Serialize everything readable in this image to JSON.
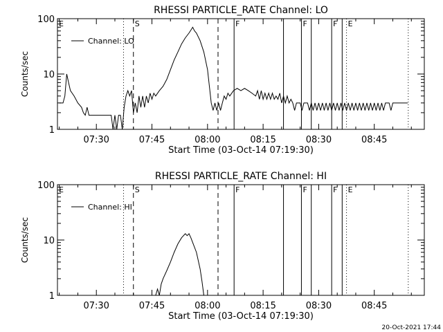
{
  "footer_timestamp": "20-Oct-2021 17:44",
  "chart_data": [
    {
      "type": "line",
      "title": "RHESSI PARTICLE_RATE Channel: LO",
      "xlabel": "Start Time (03-Oct-14 07:19:30)",
      "ylabel": "Counts/sec",
      "y_scale": "log",
      "ylim": [
        1,
        100
      ],
      "y_ticks": [
        {
          "value": 1,
          "label": "1"
        },
        {
          "value": 10,
          "label": "10"
        },
        {
          "value": 100,
          "label": "100"
        }
      ],
      "x_ticks": [
        {
          "value": "07:30",
          "label": "07:30"
        },
        {
          "value": "07:45",
          "label": "07:45"
        },
        {
          "value": "08:00",
          "label": "08:00"
        },
        {
          "value": "08:15",
          "label": "08:15"
        },
        {
          "value": "08:30",
          "label": "08:30"
        },
        {
          "value": "08:45",
          "label": "08:45"
        }
      ],
      "xlim": [
        "07:19:30",
        "08:58:30"
      ],
      "legend": {
        "position": "top-left",
        "entries": [
          "Channel: LO"
        ]
      },
      "grid": false,
      "annotations": [
        {
          "text": "E",
          "x": "07:19:30",
          "line": "none"
        },
        {
          "text": "S",
          "x": "07:40:00",
          "line": "dashed"
        },
        {
          "text": "",
          "x": "07:37:20",
          "line": "dotted"
        },
        {
          "text": "",
          "x": "08:02:50",
          "line": "dashed"
        },
        {
          "text": "F",
          "x": "08:07:10",
          "line": "solid"
        },
        {
          "text": "",
          "x": "08:20:30",
          "line": "solid"
        },
        {
          "text": "F",
          "x": "08:25:20",
          "line": "solid"
        },
        {
          "text": "",
          "x": "08:28:00",
          "line": "solid"
        },
        {
          "text": "F",
          "x": "08:33:30",
          "line": "solid"
        },
        {
          "text": "",
          "x": "08:36:20",
          "line": "solid"
        },
        {
          "text": "E",
          "x": "08:37:30",
          "line": "dotted"
        },
        {
          "text": "",
          "x": "08:54:10",
          "line": "dotted"
        }
      ],
      "series": [
        {
          "name": "Channel: LO",
          "points": [
            [
              "07:20:00",
              3.0
            ],
            [
              "07:21:00",
              3.0
            ],
            [
              "07:21:30",
              4.0
            ],
            [
              "07:22:00",
              10.0
            ],
            [
              "07:22:30",
              7.0
            ],
            [
              "07:23:00",
              5.0
            ],
            [
              "07:24:00",
              4.0
            ],
            [
              "07:25:00",
              3.0
            ],
            [
              "07:26:00",
              2.5
            ],
            [
              "07:26:30",
              2.0
            ],
            [
              "07:27:00",
              1.8
            ],
            [
              "07:27:30",
              2.5
            ],
            [
              "07:28:00",
              1.8
            ],
            [
              "07:34:00",
              1.8
            ],
            [
              "07:34:30",
              1.0
            ],
            [
              "07:35:00",
              1.8
            ],
            [
              "07:35:30",
              1.0
            ],
            [
              "07:36:00",
              1.8
            ],
            [
              "07:36:30",
              1.8
            ],
            [
              "07:37:00",
              1.0
            ],
            [
              "07:37:30",
              2.5
            ],
            [
              "07:38:00",
              4.0
            ],
            [
              "07:38:30",
              5.0
            ],
            [
              "07:39:00",
              4.0
            ],
            [
              "07:39:30",
              5.0
            ],
            [
              "07:40:00",
              2.0
            ],
            [
              "07:40:30",
              3.0
            ],
            [
              "07:41:00",
              2.0
            ],
            [
              "07:41:30",
              4.0
            ],
            [
              "07:42:00",
              2.5
            ],
            [
              "07:42:30",
              4.0
            ],
            [
              "07:43:00",
              2.5
            ],
            [
              "07:43:30",
              4.0
            ],
            [
              "07:44:00",
              3.0
            ],
            [
              "07:44:30",
              4.5
            ],
            [
              "07:45:00",
              3.5
            ],
            [
              "07:45:30",
              4.5
            ],
            [
              "07:46:00",
              4.0
            ],
            [
              "07:47:00",
              5.0
            ],
            [
              "07:48:00",
              6.0
            ],
            [
              "07:49:00",
              8.0
            ],
            [
              "07:50:00",
              12.0
            ],
            [
              "07:51:00",
              18.0
            ],
            [
              "07:52:00",
              25.0
            ],
            [
              "07:53:00",
              35.0
            ],
            [
              "07:54:00",
              45.0
            ],
            [
              "07:55:00",
              55.0
            ],
            [
              "07:55:30",
              62.0
            ],
            [
              "07:56:00",
              70.0
            ],
            [
              "07:56:30",
              60.0
            ],
            [
              "07:57:00",
              55.0
            ],
            [
              "07:58:00",
              40.0
            ],
            [
              "07:59:00",
              25.0
            ],
            [
              "08:00:00",
              12.0
            ],
            [
              "08:00:30",
              6.0
            ],
            [
              "08:01:00",
              3.0
            ],
            [
              "08:01:30",
              2.2
            ],
            [
              "08:02:00",
              3.0
            ],
            [
              "08:02:30",
              2.2
            ],
            [
              "08:03:00",
              3.0
            ],
            [
              "08:03:30",
              2.2
            ],
            [
              "08:04:00",
              3.0
            ],
            [
              "08:04:30",
              4.0
            ],
            [
              "08:05:00",
              3.5
            ],
            [
              "08:05:30",
              4.5
            ],
            [
              "08:06:00",
              4.0
            ],
            [
              "08:07:00",
              5.0
            ],
            [
              "08:08:00",
              5.5
            ],
            [
              "08:09:00",
              5.0
            ],
            [
              "08:10:00",
              5.5
            ],
            [
              "08:11:00",
              5.0
            ],
            [
              "08:12:00",
              4.5
            ],
            [
              "08:13:00",
              4.0
            ],
            [
              "08:13:30",
              5.0
            ],
            [
              "08:14:00",
              3.5
            ],
            [
              "08:14:30",
              5.0
            ],
            [
              "08:15:00",
              3.5
            ],
            [
              "08:15:30",
              4.5
            ],
            [
              "08:16:00",
              3.5
            ],
            [
              "08:16:30",
              4.5
            ],
            [
              "08:17:00",
              3.5
            ],
            [
              "08:17:30",
              4.5
            ],
            [
              "08:18:00",
              3.5
            ],
            [
              "08:18:30",
              4.0
            ],
            [
              "08:19:00",
              3.5
            ],
            [
              "08:19:30",
              4.5
            ],
            [
              "08:20:00",
              3.0
            ],
            [
              "08:20:30",
              4.0
            ],
            [
              "08:21:00",
              3.0
            ],
            [
              "08:21:30",
              4.0
            ],
            [
              "08:22:00",
              3.0
            ],
            [
              "08:22:30",
              3.5
            ],
            [
              "08:23:00",
              3.0
            ],
            [
              "08:23:30",
              2.2
            ],
            [
              "08:24:00",
              3.0
            ],
            [
              "08:25:00",
              3.0
            ],
            [
              "08:25:30",
              2.2
            ],
            [
              "08:26:00",
              3.0
            ],
            [
              "08:27:00",
              3.0
            ],
            [
              "08:27:30",
              2.2
            ],
            [
              "08:28:00",
              3.0
            ],
            [
              "08:28:30",
              2.2
            ],
            [
              "08:29:00",
              3.0
            ],
            [
              "08:29:30",
              2.2
            ],
            [
              "08:30:00",
              3.0
            ],
            [
              "08:30:30",
              2.2
            ],
            [
              "08:31:00",
              3.0
            ],
            [
              "08:31:30",
              2.2
            ],
            [
              "08:32:00",
              3.0
            ],
            [
              "08:32:30",
              2.2
            ],
            [
              "08:33:00",
              3.0
            ],
            [
              "08:33:30",
              2.2
            ],
            [
              "08:34:00",
              3.0
            ],
            [
              "08:34:30",
              2.2
            ],
            [
              "08:35:00",
              3.0
            ],
            [
              "08:35:30",
              2.2
            ],
            [
              "08:36:00",
              3.0
            ],
            [
              "08:36:30",
              2.2
            ],
            [
              "08:37:00",
              3.0
            ],
            [
              "08:37:30",
              2.2
            ],
            [
              "08:38:00",
              3.0
            ],
            [
              "08:38:30",
              2.2
            ],
            [
              "08:39:00",
              3.0
            ],
            [
              "08:39:30",
              2.2
            ],
            [
              "08:40:00",
              3.0
            ],
            [
              "08:40:30",
              2.2
            ],
            [
              "08:41:00",
              3.0
            ],
            [
              "08:41:30",
              2.2
            ],
            [
              "08:42:00",
              3.0
            ],
            [
              "08:42:30",
              2.2
            ],
            [
              "08:43:00",
              3.0
            ],
            [
              "08:43:30",
              2.2
            ],
            [
              "08:44:00",
              3.0
            ],
            [
              "08:44:30",
              2.2
            ],
            [
              "08:45:00",
              3.0
            ],
            [
              "08:45:30",
              2.2
            ],
            [
              "08:46:00",
              3.0
            ],
            [
              "08:46:30",
              2.2
            ],
            [
              "08:47:00",
              3.0
            ],
            [
              "08:47:30",
              2.2
            ],
            [
              "08:48:00",
              3.0
            ],
            [
              "08:49:00",
              3.0
            ],
            [
              "08:49:30",
              2.2
            ],
            [
              "08:50:00",
              3.0
            ],
            [
              "08:51:00",
              3.0
            ],
            [
              "08:52:00",
              3.0
            ],
            [
              "08:53:00",
              3.0
            ],
            [
              "08:54:00",
              3.0
            ]
          ]
        }
      ]
    },
    {
      "type": "line",
      "title": "RHESSI PARTICLE_RATE Channel: HI",
      "xlabel": "Start Time (03-Oct-14 07:19:30)",
      "ylabel": "Counts/sec",
      "y_scale": "log",
      "ylim": [
        1,
        100
      ],
      "y_ticks": [
        {
          "value": 1,
          "label": "1"
        },
        {
          "value": 10,
          "label": "10"
        },
        {
          "value": 100,
          "label": "100"
        }
      ],
      "x_ticks": [
        {
          "value": "07:30",
          "label": "07:30"
        },
        {
          "value": "07:45",
          "label": "07:45"
        },
        {
          "value": "08:00",
          "label": "08:00"
        },
        {
          "value": "08:15",
          "label": "08:15"
        },
        {
          "value": "08:30",
          "label": "08:30"
        },
        {
          "value": "08:45",
          "label": "08:45"
        }
      ],
      "xlim": [
        "07:19:30",
        "08:58:30"
      ],
      "legend": {
        "position": "top-left",
        "entries": [
          "Channel: HI"
        ]
      },
      "grid": false,
      "annotations": [
        {
          "text": "E",
          "x": "07:19:30",
          "line": "none"
        },
        {
          "text": "S",
          "x": "07:40:00",
          "line": "dashed"
        },
        {
          "text": "",
          "x": "07:37:20",
          "line": "dotted"
        },
        {
          "text": "",
          "x": "08:02:50",
          "line": "dashed"
        },
        {
          "text": "F",
          "x": "08:07:10",
          "line": "solid"
        },
        {
          "text": "",
          "x": "08:20:30",
          "line": "solid"
        },
        {
          "text": "F",
          "x": "08:25:20",
          "line": "solid"
        },
        {
          "text": "",
          "x": "08:28:00",
          "line": "solid"
        },
        {
          "text": "F",
          "x": "08:33:30",
          "line": "solid"
        },
        {
          "text": "",
          "x": "08:36:20",
          "line": "solid"
        },
        {
          "text": "E",
          "x": "08:37:30",
          "line": "dotted"
        },
        {
          "text": "",
          "x": "08:54:10",
          "line": "dotted"
        }
      ],
      "series": [
        {
          "name": "Channel: HI",
          "points": [
            [
              "07:46:00",
              1.0
            ],
            [
              "07:46:30",
              1.3
            ],
            [
              "07:47:00",
              1.0
            ],
            [
              "07:47:30",
              1.6
            ],
            [
              "07:48:00",
              2.0
            ],
            [
              "07:49:00",
              2.8
            ],
            [
              "07:50:00",
              4.0
            ],
            [
              "07:51:00",
              6.0
            ],
            [
              "07:52:00",
              8.5
            ],
            [
              "07:53:00",
              11.0
            ],
            [
              "07:54:00",
              13.0
            ],
            [
              "07:54:30",
              12.0
            ],
            [
              "07:55:00",
              13.0
            ],
            [
              "07:55:30",
              11.0
            ],
            [
              "07:56:00",
              9.0
            ],
            [
              "07:57:00",
              6.0
            ],
            [
              "07:58:00",
              3.0
            ],
            [
              "07:58:30",
              1.8
            ],
            [
              "07:59:00",
              1.0
            ]
          ]
        }
      ]
    }
  ]
}
